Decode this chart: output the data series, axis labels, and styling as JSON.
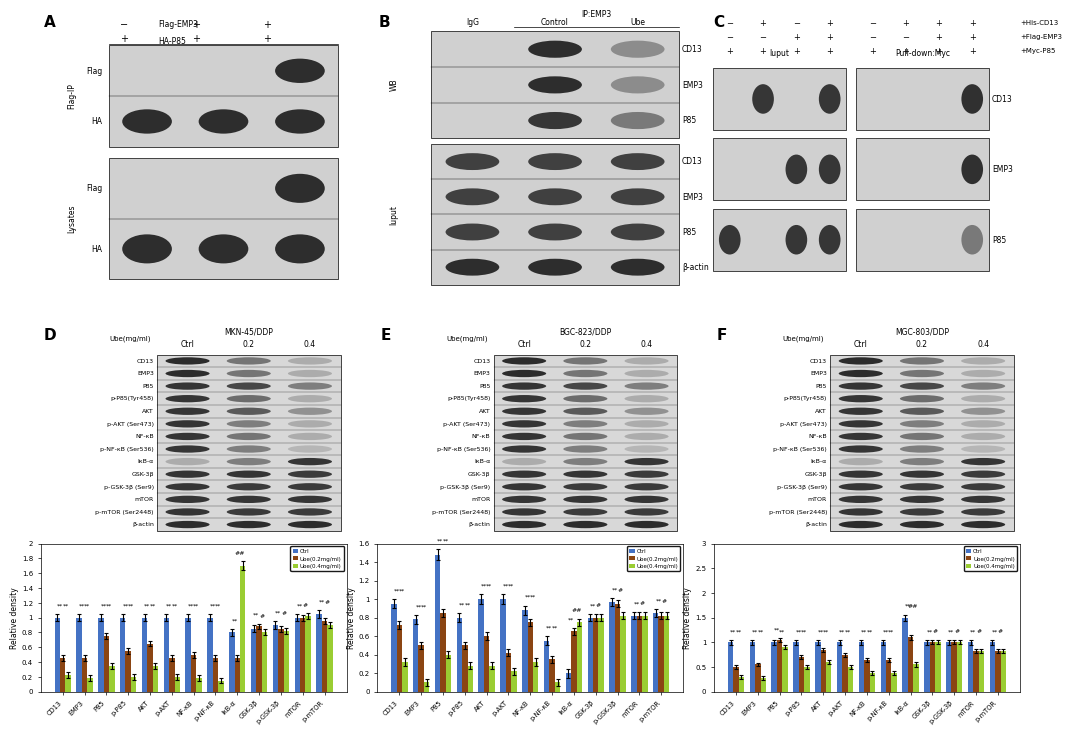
{
  "panel_labels": [
    "A",
    "B",
    "C",
    "D",
    "E",
    "F"
  ],
  "categories": [
    "CD13",
    "EMP3",
    "P85",
    "p-P85",
    "AKT",
    "p-AKT",
    "NF-κB",
    "p-NF-κB",
    "IκB-α",
    "GSK-3β",
    "p-GSK-3β",
    "mTOR",
    "p-mTOR"
  ],
  "legend_labels": [
    "Ctrl",
    "Ube(0.2mg/ml)",
    "Ube(0.4mg/ml)"
  ],
  "bar_colors": [
    "#4472C4",
    "#8B4513",
    "#9ACD32"
  ],
  "D_ctrl": [
    1.0,
    1.0,
    1.0,
    1.0,
    1.0,
    1.0,
    1.0,
    1.0,
    0.8,
    0.85,
    0.9,
    1.0,
    1.05
  ],
  "D_ube02": [
    0.45,
    0.45,
    0.75,
    0.55,
    0.65,
    0.45,
    0.5,
    0.45,
    0.45,
    0.88,
    0.85,
    1.0,
    0.95
  ],
  "D_ube04": [
    0.22,
    0.18,
    0.35,
    0.2,
    0.35,
    0.2,
    0.18,
    0.15,
    1.7,
    0.8,
    0.82,
    1.02,
    0.9
  ],
  "D_err_ctrl": [
    0.05,
    0.05,
    0.05,
    0.05,
    0.05,
    0.05,
    0.05,
    0.05,
    0.05,
    0.05,
    0.05,
    0.05,
    0.05
  ],
  "D_err_02": [
    0.04,
    0.04,
    0.04,
    0.04,
    0.04,
    0.04,
    0.04,
    0.04,
    0.04,
    0.04,
    0.04,
    0.04,
    0.04
  ],
  "D_err_04": [
    0.04,
    0.04,
    0.04,
    0.04,
    0.04,
    0.04,
    0.04,
    0.04,
    0.06,
    0.04,
    0.04,
    0.04,
    0.04
  ],
  "D_ylim": [
    0,
    2.0
  ],
  "D_yticks": [
    0,
    0.2,
    0.4,
    0.6,
    0.8,
    1.0,
    1.2,
    1.4,
    1.6,
    1.8,
    2.0
  ],
  "E_ctrl": [
    0.95,
    0.78,
    1.48,
    0.8,
    1.0,
    1.0,
    0.88,
    0.55,
    0.2,
    0.8,
    0.97,
    0.82,
    0.85
  ],
  "E_ube02": [
    0.72,
    0.5,
    0.85,
    0.5,
    0.6,
    0.42,
    0.75,
    0.35,
    0.65,
    0.8,
    0.95,
    0.82,
    0.82
  ],
  "E_ube04": [
    0.32,
    0.1,
    0.4,
    0.28,
    0.28,
    0.22,
    0.32,
    0.1,
    0.75,
    0.8,
    0.82,
    0.82,
    0.82
  ],
  "E_err_ctrl": [
    0.05,
    0.05,
    0.06,
    0.05,
    0.05,
    0.05,
    0.05,
    0.05,
    0.05,
    0.04,
    0.04,
    0.04,
    0.04
  ],
  "E_err_02": [
    0.04,
    0.04,
    0.04,
    0.04,
    0.04,
    0.04,
    0.04,
    0.04,
    0.04,
    0.04,
    0.04,
    0.04,
    0.04
  ],
  "E_err_04": [
    0.04,
    0.04,
    0.04,
    0.04,
    0.04,
    0.04,
    0.04,
    0.04,
    0.04,
    0.04,
    0.04,
    0.04,
    0.04
  ],
  "E_ylim": [
    0,
    1.6
  ],
  "E_yticks": [
    0,
    0.2,
    0.4,
    0.6,
    0.8,
    1.0,
    1.2,
    1.4,
    1.6
  ],
  "F_ctrl": [
    1.0,
    1.0,
    1.0,
    1.0,
    1.0,
    1.0,
    1.0,
    1.0,
    1.5,
    1.0,
    1.0,
    1.0,
    1.0
  ],
  "F_ube02": [
    0.5,
    0.55,
    1.05,
    0.7,
    0.85,
    0.75,
    0.65,
    0.65,
    1.1,
    1.0,
    1.0,
    0.82,
    0.82
  ],
  "F_ube04": [
    0.3,
    0.28,
    0.9,
    0.5,
    0.6,
    0.5,
    0.38,
    0.38,
    0.55,
    1.0,
    1.0,
    0.82,
    0.82
  ],
  "F_err_ctrl": [
    0.05,
    0.05,
    0.05,
    0.05,
    0.05,
    0.05,
    0.05,
    0.05,
    0.06,
    0.05,
    0.05,
    0.05,
    0.05
  ],
  "F_err_02": [
    0.04,
    0.04,
    0.04,
    0.04,
    0.04,
    0.04,
    0.04,
    0.04,
    0.05,
    0.04,
    0.04,
    0.04,
    0.04
  ],
  "F_err_04": [
    0.04,
    0.04,
    0.04,
    0.04,
    0.04,
    0.04,
    0.04,
    0.04,
    0.05,
    0.04,
    0.04,
    0.04,
    0.04
  ],
  "F_ylim": [
    0,
    3.0
  ],
  "F_yticks": [
    0,
    0.5,
    1.0,
    1.5,
    2.0,
    2.5,
    3.0
  ],
  "wb_rows_def": [
    "CD13",
    "EMP3",
    "P85",
    "p-P85(Tyr458)",
    "AKT",
    "p-AKT (Ser473)",
    "NF-κB",
    "p-NF-κB (Ser536)",
    "IκB-α",
    "GSK-3β",
    "p-GSK-3β (Ser9)",
    "mTOR",
    "p-mTOR (Ser2448)",
    "β-actin"
  ]
}
